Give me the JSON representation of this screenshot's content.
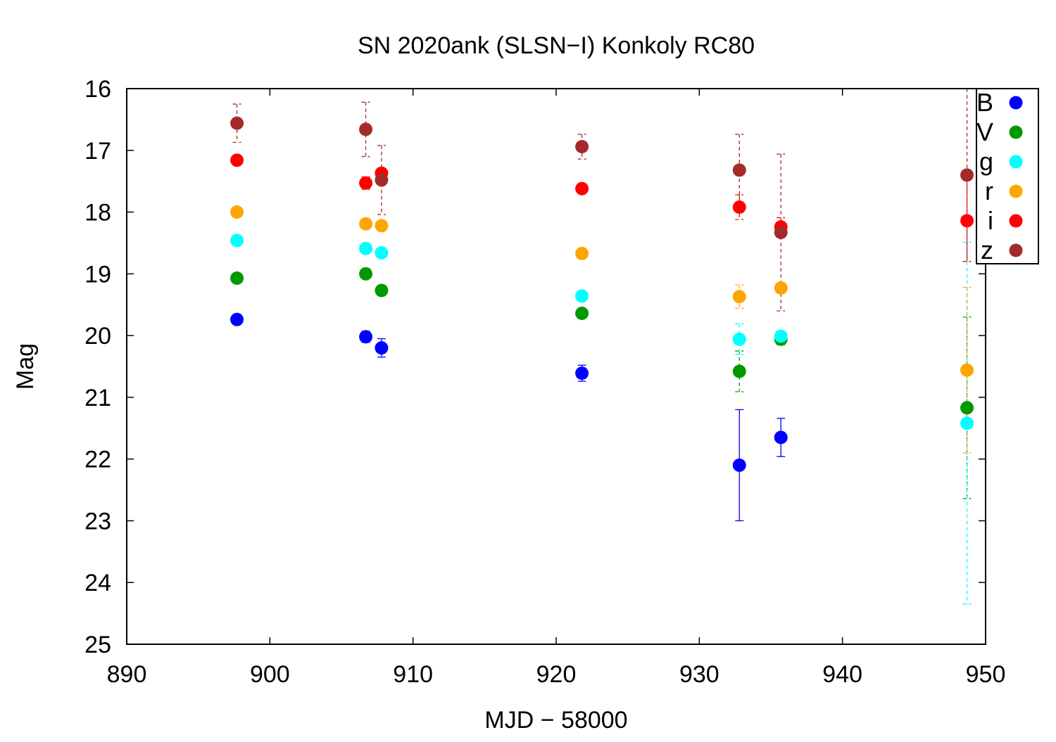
{
  "chart_data": {
    "type": "scatter",
    "title": "SN 2020ank (SLSN−I) Konkoly RC80",
    "xlabel": "MJD − 58000",
    "ylabel": "Mag",
    "xlim": [
      890,
      950
    ],
    "ylim": [
      16,
      25
    ],
    "y_inverted": true,
    "xticks": [
      "890",
      "900",
      "910",
      "920",
      "930",
      "940",
      "950"
    ],
    "yticks": [
      "16",
      "17",
      "18",
      "19",
      "20",
      "21",
      "22",
      "23",
      "24",
      "25"
    ],
    "grid": false,
    "legend_position": "top-right",
    "series": [
      {
        "name": "B",
        "color": "#0000ff",
        "points": [
          {
            "x": 897.7,
            "y": 19.74,
            "err": 0.08
          },
          {
            "x": 906.7,
            "y": 20.02,
            "err": 0.09
          },
          {
            "x": 907.8,
            "y": 20.2,
            "err": 0.15
          },
          {
            "x": 921.8,
            "y": 20.61,
            "err": 0.13
          },
          {
            "x": 932.8,
            "y": 22.1,
            "err": 0.9
          },
          {
            "x": 935.7,
            "y": 21.65,
            "err": 0.31
          }
        ]
      },
      {
        "name": "V",
        "color": "#009900",
        "points": [
          {
            "x": 897.7,
            "y": 19.07,
            "err": 0.05
          },
          {
            "x": 906.7,
            "y": 19.0,
            "err": 0.05
          },
          {
            "x": 907.8,
            "y": 19.27,
            "err": 0.08
          },
          {
            "x": 921.8,
            "y": 19.64,
            "err": 0.05
          },
          {
            "x": 932.8,
            "y": 20.58,
            "err": 0.33
          },
          {
            "x": 935.7,
            "y": 20.06,
            "err": 0.09
          },
          {
            "x": 948.7,
            "y": 21.17,
            "err": 1.47
          }
        ]
      },
      {
        "name": "g",
        "color": "#00ffff",
        "points": [
          {
            "x": 897.7,
            "y": 18.46,
            "err": 0.04
          },
          {
            "x": 906.7,
            "y": 18.59,
            "err": 0.05
          },
          {
            "x": 907.8,
            "y": 18.66,
            "err": 0.05
          },
          {
            "x": 921.8,
            "y": 19.36,
            "err": 0.05
          },
          {
            "x": 932.8,
            "y": 20.06,
            "err": 0.25
          },
          {
            "x": 935.7,
            "y": 20.01,
            "err": 0.06
          },
          {
            "x": 948.7,
            "y": 21.42,
            "err": 2.93
          }
        ]
      },
      {
        "name": "r",
        "color": "#ffa500",
        "points": [
          {
            "x": 897.7,
            "y": 18.0,
            "err": 0.03
          },
          {
            "x": 906.7,
            "y": 18.19,
            "err": 0.04
          },
          {
            "x": 907.8,
            "y": 18.22,
            "err": 0.04
          },
          {
            "x": 921.8,
            "y": 18.67,
            "err": 0.04
          },
          {
            "x": 932.8,
            "y": 19.37,
            "err": 0.19
          },
          {
            "x": 935.7,
            "y": 19.23,
            "err": 0.05
          },
          {
            "x": 948.7,
            "y": 20.56,
            "err": 1.34
          }
        ]
      },
      {
        "name": "i",
        "color": "#ff0000",
        "points": [
          {
            "x": 897.7,
            "y": 17.16,
            "err": 0.03
          },
          {
            "x": 906.7,
            "y": 17.53,
            "err": 0.1
          },
          {
            "x": 907.8,
            "y": 17.37,
            "err": 0.06
          },
          {
            "x": 921.8,
            "y": 17.62,
            "err": 0.04
          },
          {
            "x": 932.8,
            "y": 17.92,
            "err": 0.2
          },
          {
            "x": 935.7,
            "y": 18.24,
            "err": 0.15
          },
          {
            "x": 948.7,
            "y": 18.14,
            "err": 0.66
          }
        ]
      },
      {
        "name": "z",
        "color": "#a52a2a",
        "points": [
          {
            "x": 897.7,
            "y": 16.56,
            "err": 0.31
          },
          {
            "x": 906.7,
            "y": 16.66,
            "err": 0.44
          },
          {
            "x": 907.8,
            "y": 17.48,
            "err": 0.56
          },
          {
            "x": 921.8,
            "y": 16.94,
            "err": 0.2
          },
          {
            "x": 932.8,
            "y": 17.32,
            "err": 0.58
          },
          {
            "x": 935.7,
            "y": 18.33,
            "err": 1.27
          },
          {
            "x": 948.7,
            "y": 17.4,
            "err": 1.4
          }
        ]
      }
    ]
  }
}
